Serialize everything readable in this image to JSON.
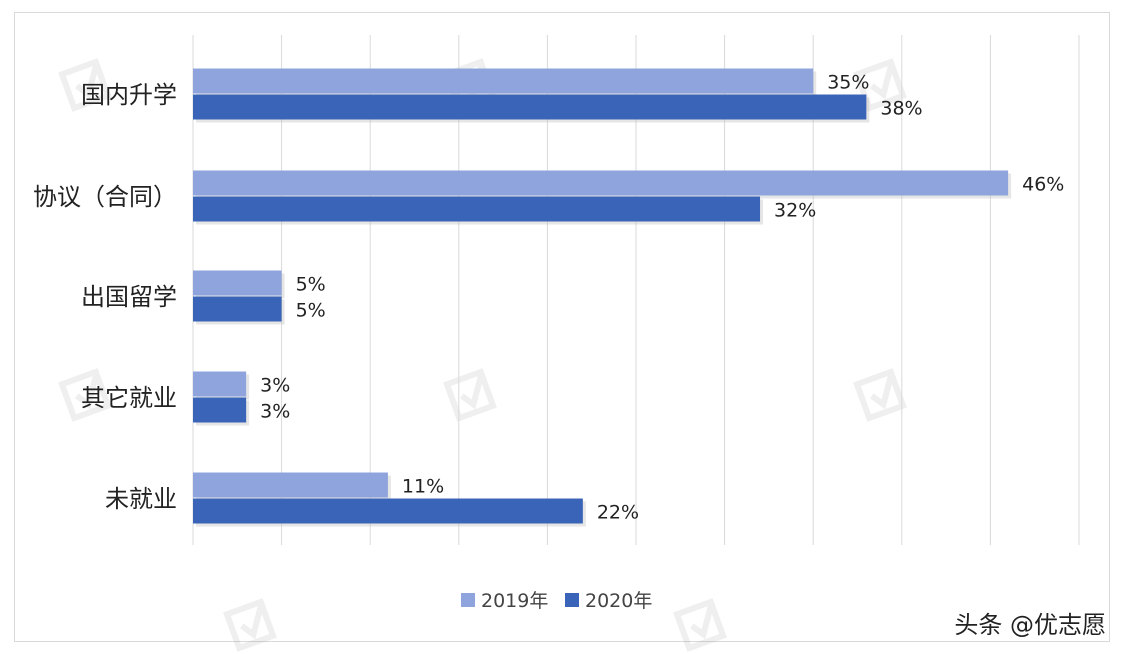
{
  "chart_data": {
    "type": "bar",
    "orientation": "horizontal",
    "categories": [
      "国内升学",
      "协议（合同）",
      "出国留学",
      "其它就业",
      "未就业"
    ],
    "series": [
      {
        "name": "2019年",
        "values": [
          35,
          46,
          5,
          3,
          11
        ],
        "labels": [
          "35%",
          "46%",
          "5%",
          "3%",
          "11%"
        ],
        "color": "#8fa4dc"
      },
      {
        "name": "2020年",
        "values": [
          38,
          32,
          5,
          3,
          22
        ],
        "labels": [
          "38%",
          "32%",
          "5%",
          "3%",
          "22%"
        ],
        "color": "#3a64b7"
      }
    ],
    "xlim": [
      0,
      50
    ],
    "x_gridlines": true,
    "legend": "bottom"
  },
  "watermark": {
    "account_text": "头条 @优志愿"
  },
  "colors": {
    "frame": "#d9d9d9",
    "gridline": "#d9d9d9"
  }
}
